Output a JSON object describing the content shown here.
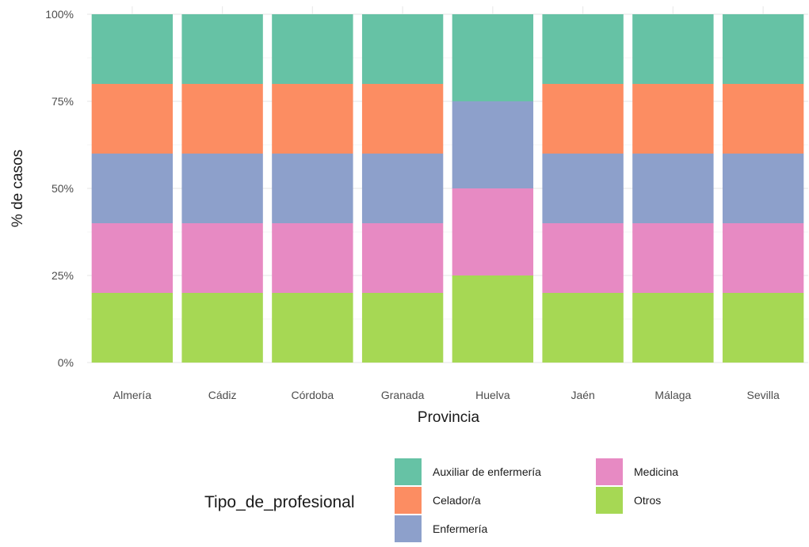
{
  "chart_data": {
    "type": "bar",
    "stacked": true,
    "normalized": true,
    "categories": [
      "Almería",
      "Cádiz",
      "Córdoba",
      "Granada",
      "Huelva",
      "Jaén",
      "Málaga",
      "Sevilla"
    ],
    "series": [
      {
        "name": "Otros",
        "color": "#a6d854",
        "values": [
          20,
          20,
          20,
          20,
          25,
          20,
          20,
          20
        ]
      },
      {
        "name": "Medicina",
        "color": "#e78ac3",
        "values": [
          20,
          20,
          20,
          20,
          25,
          20,
          20,
          20
        ]
      },
      {
        "name": "Enfermería",
        "color": "#8da0cb",
        "values": [
          20,
          20,
          20,
          20,
          25,
          20,
          20,
          20
        ]
      },
      {
        "name": "Celador/a",
        "color": "#fc8d62",
        "values": [
          20,
          20,
          20,
          20,
          0,
          20,
          20,
          20
        ]
      },
      {
        "name": "Auxiliar de enfermería",
        "color": "#66c2a5",
        "values": [
          20,
          20,
          20,
          20,
          25,
          20,
          20,
          20
        ]
      }
    ],
    "xlabel": "Provincia",
    "ylabel": "% de casos",
    "ylim": [
      0,
      100
    ],
    "yticks": [
      "0%",
      "25%",
      "50%",
      "75%",
      "100%"
    ],
    "grid": true,
    "legend": {
      "title": "Tipo_de_profesional",
      "position": "bottom",
      "entries": [
        "Auxiliar de enfermería",
        "Celador/a",
        "Enfermería",
        "Medicina",
        "Otros"
      ]
    }
  }
}
